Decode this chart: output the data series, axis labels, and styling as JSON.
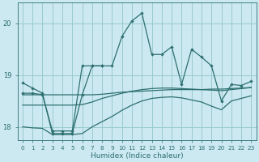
{
  "xlabel": "Humidex (Indice chaleur)",
  "background_color": "#cce8f0",
  "grid_color": "#99cccc",
  "line_color": "#2d7070",
  "x_values": [
    0,
    1,
    2,
    3,
    4,
    5,
    6,
    7,
    8,
    9,
    10,
    11,
    12,
    13,
    14,
    15,
    16,
    17,
    18,
    19,
    20,
    21,
    22,
    23
  ],
  "series1_main": [
    18.85,
    18.75,
    18.65,
    17.87,
    17.87,
    17.87,
    18.62,
    19.18,
    19.18,
    19.18,
    19.75,
    20.05,
    20.2,
    19.4,
    19.4,
    19.55,
    18.82,
    19.5,
    19.35,
    19.18,
    18.5,
    18.82,
    18.8,
    18.88
  ],
  "series2_marked": [
    18.65,
    18.65,
    18.62,
    17.92,
    17.92,
    17.92,
    19.18,
    19.18,
    19.18,
    null,
    null,
    null,
    null,
    null,
    null,
    null,
    null,
    null,
    null,
    null,
    null,
    null,
    null,
    null
  ],
  "series3_trend1": [
    18.62,
    18.62,
    18.62,
    18.62,
    18.62,
    18.62,
    18.62,
    18.62,
    18.63,
    18.65,
    18.67,
    18.68,
    18.69,
    18.7,
    18.71,
    18.72,
    18.72,
    18.72,
    18.72,
    18.73,
    18.73,
    18.74,
    18.75,
    18.76
  ],
  "series4_trend2": [
    18.42,
    18.42,
    18.42,
    18.42,
    18.42,
    18.42,
    18.43,
    18.48,
    18.55,
    18.6,
    18.65,
    18.69,
    18.72,
    18.74,
    18.75,
    18.75,
    18.74,
    18.73,
    18.72,
    18.71,
    18.7,
    18.72,
    18.74,
    18.76
  ],
  "series5_bottom": [
    18.0,
    17.98,
    17.97,
    17.85,
    17.85,
    17.85,
    17.87,
    18.0,
    18.1,
    18.2,
    18.32,
    18.42,
    18.5,
    18.55,
    18.57,
    18.58,
    18.56,
    18.52,
    18.48,
    18.4,
    18.33,
    18.5,
    18.55,
    18.6
  ],
  "ylim": [
    17.75,
    20.4
  ],
  "yticks": [
    18,
    19,
    20
  ],
  "xlim": [
    -0.5,
    23.5
  ]
}
